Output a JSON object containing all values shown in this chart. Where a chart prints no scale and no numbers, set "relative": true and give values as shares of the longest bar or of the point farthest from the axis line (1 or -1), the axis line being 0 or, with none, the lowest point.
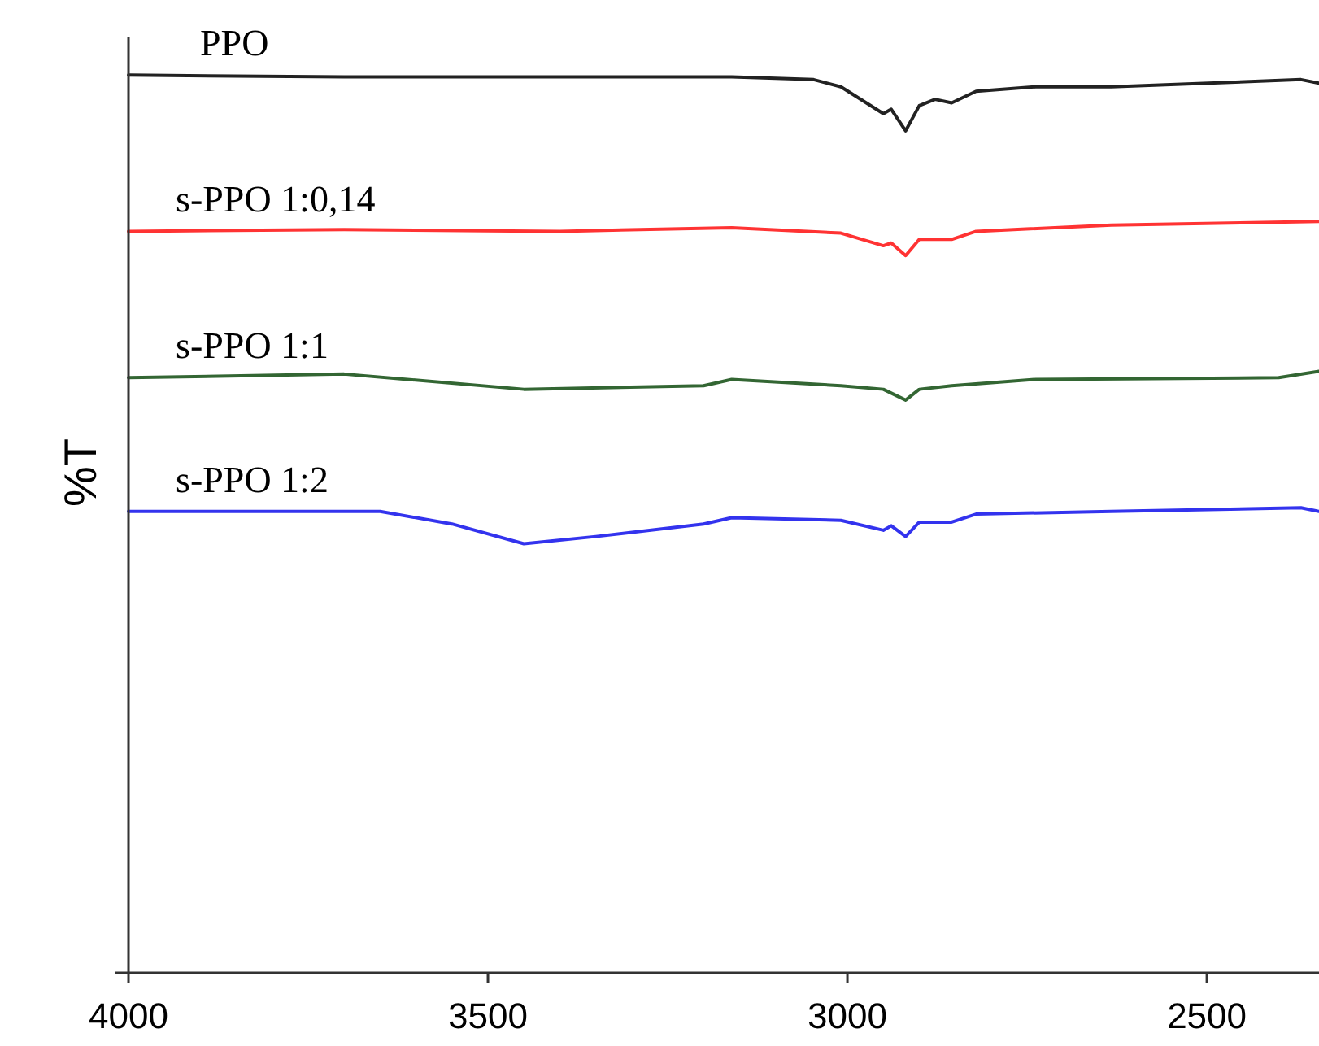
{
  "chart_data": {
    "type": "line",
    "ylabel": "%T",
    "relative": true,
    "xlim": [
      4000,
      2344
    ],
    "xticks": [
      4000,
      3500,
      3000,
      2500
    ],
    "grid": false,
    "legend": false,
    "marker": "none",
    "line_style": "solid",
    "series": [
      {
        "name": "PPO",
        "color": "#222222",
        "x": [
          4000,
          3700,
          3400,
          3161,
          3047,
          3009,
          2950,
          2939,
          2919,
          2900,
          2878,
          2855,
          2821,
          2738,
          2633,
          2369,
          2344
        ],
        "values": [
          1.0,
          0.998,
          0.998,
          0.998,
          0.995,
          0.987,
          0.957,
          0.962,
          0.938,
          0.966,
          0.973,
          0.969,
          0.982,
          0.987,
          0.987,
          0.995,
          0.991
        ]
      },
      {
        "name": "s-PPO 1:0,14",
        "color": "#ff3333",
        "x": [
          4000,
          3700,
          3400,
          3161,
          3009,
          2950,
          2939,
          2919,
          2900,
          2855,
          2821,
          2633,
          2344
        ],
        "values": [
          0.826,
          0.828,
          0.826,
          0.83,
          0.824,
          0.81,
          0.813,
          0.799,
          0.817,
          0.817,
          0.826,
          0.833,
          0.837
        ]
      },
      {
        "name": "s-PPO 1:1",
        "color": "#336633",
        "x": [
          4000,
          3700,
          3450,
          3200,
          3161,
          3009,
          2950,
          2919,
          2900,
          2855,
          2738,
          2400,
          2344
        ],
        "values": [
          0.663,
          0.667,
          0.65,
          0.654,
          0.661,
          0.654,
          0.65,
          0.638,
          0.65,
          0.654,
          0.661,
          0.663,
          0.67
        ]
      },
      {
        "name": "s-PPO 1:2",
        "color": "#3333ee",
        "x": [
          4000,
          3650,
          3550,
          3450,
          3350,
          3200,
          3161,
          3009,
          2950,
          2939,
          2919,
          2900,
          2855,
          2821,
          2633,
          2369,
          2344
        ],
        "values": [
          0.514,
          0.514,
          0.5,
          0.478,
          0.486,
          0.5,
          0.507,
          0.504,
          0.493,
          0.498,
          0.486,
          0.502,
          0.502,
          0.511,
          0.514,
          0.518,
          0.514
        ]
      }
    ]
  }
}
